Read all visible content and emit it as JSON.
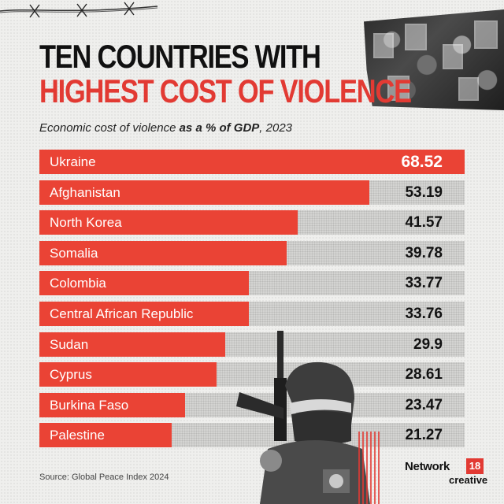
{
  "title": {
    "line1": "TEN COUNTRIES WITH",
    "line2": "HIGHEST COST OF VIOLENCE"
  },
  "subtitle": {
    "part1": "Economic cost of violence ",
    "bold": "as a % of GDP",
    "part2": ", 2023"
  },
  "source": "Source: Global Peace Index 2024",
  "logo": {
    "brand": "Network",
    "number": "18",
    "sub": "creative"
  },
  "colors": {
    "bar": "#ea4335",
    "title_accent": "#e23a33",
    "track": "#d4d4d2"
  },
  "chart_data": {
    "type": "bar",
    "orientation": "horizontal",
    "categories": [
      "Ukraine",
      "Afghanistan",
      "North Korea",
      "Somalia",
      "Colombia",
      "Central African Republic",
      "Sudan",
      "Cyprus",
      "Burkina Faso",
      "Palestine"
    ],
    "values": [
      68.52,
      53.19,
      41.57,
      39.78,
      33.77,
      33.76,
      29.9,
      28.61,
      23.47,
      21.27
    ],
    "value_labels": [
      "68.52",
      "53.19",
      "41.57",
      "39.78",
      "33.77",
      "33.76",
      "29.9",
      "28.61",
      "23.47",
      "21.27"
    ],
    "xlim": [
      0,
      68.52
    ],
    "grid": false
  }
}
